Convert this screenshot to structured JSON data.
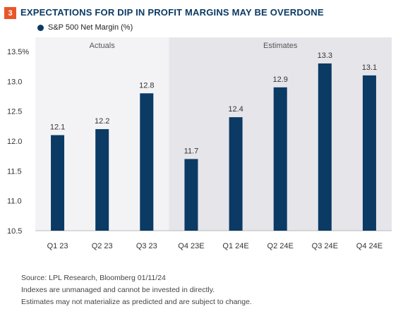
{
  "badge": "3",
  "title": "EXPECTATIONS FOR DIP IN PROFIT MARGINS MAY BE OVERDONE",
  "colors": {
    "accent": "#e8562a",
    "bar": "#0b3a64",
    "actuals_bg": "#f3f3f6",
    "estimates_bg": "#e6e5ea"
  },
  "chart_data": {
    "type": "bar",
    "title": "EXPECTATIONS FOR DIP IN PROFIT MARGINS MAY BE OVERDONE",
    "categories": [
      "Q1 23",
      "Q2 23",
      "Q3 23",
      "Q4 23E",
      "Q1 24E",
      "Q2 24E",
      "Q3 24E",
      "Q4 24E"
    ],
    "series": [
      {
        "name": "S&P 500 Net Margin (%)",
        "values": [
          12.1,
          12.2,
          12.8,
          11.7,
          12.4,
          12.9,
          13.3,
          13.1
        ]
      }
    ],
    "data_labels": [
      "12.1",
      "12.2",
      "12.8",
      "11.7",
      "12.4",
      "12.9",
      "13.3",
      "13.1"
    ],
    "ylim": [
      10.5,
      13.5
    ],
    "yticks": [
      10.5,
      11.0,
      11.5,
      12.0,
      12.5,
      13.0,
      13.5
    ],
    "ytick_labels": [
      "10.5",
      "11.0",
      "11.5",
      "12.0",
      "12.5",
      "13.0",
      "13.5%"
    ],
    "regions": [
      {
        "label": "Actuals",
        "categories": [
          "Q1 23",
          "Q2 23",
          "Q3 23"
        ]
      },
      {
        "label": "Estimates",
        "categories": [
          "Q4 23E",
          "Q1 24E",
          "Q2 24E",
          "Q3 24E",
          "Q4 24E"
        ]
      }
    ],
    "grid": false,
    "legend": "top-left",
    "xlabel": "",
    "ylabel": ""
  },
  "footer": {
    "source": "Source: LPL Research, Bloomberg 01/11/24",
    "note1": "Indexes are unmanaged and cannot be invested in directly.",
    "note2": "Estimates may not materialize as predicted and are subject to change."
  }
}
